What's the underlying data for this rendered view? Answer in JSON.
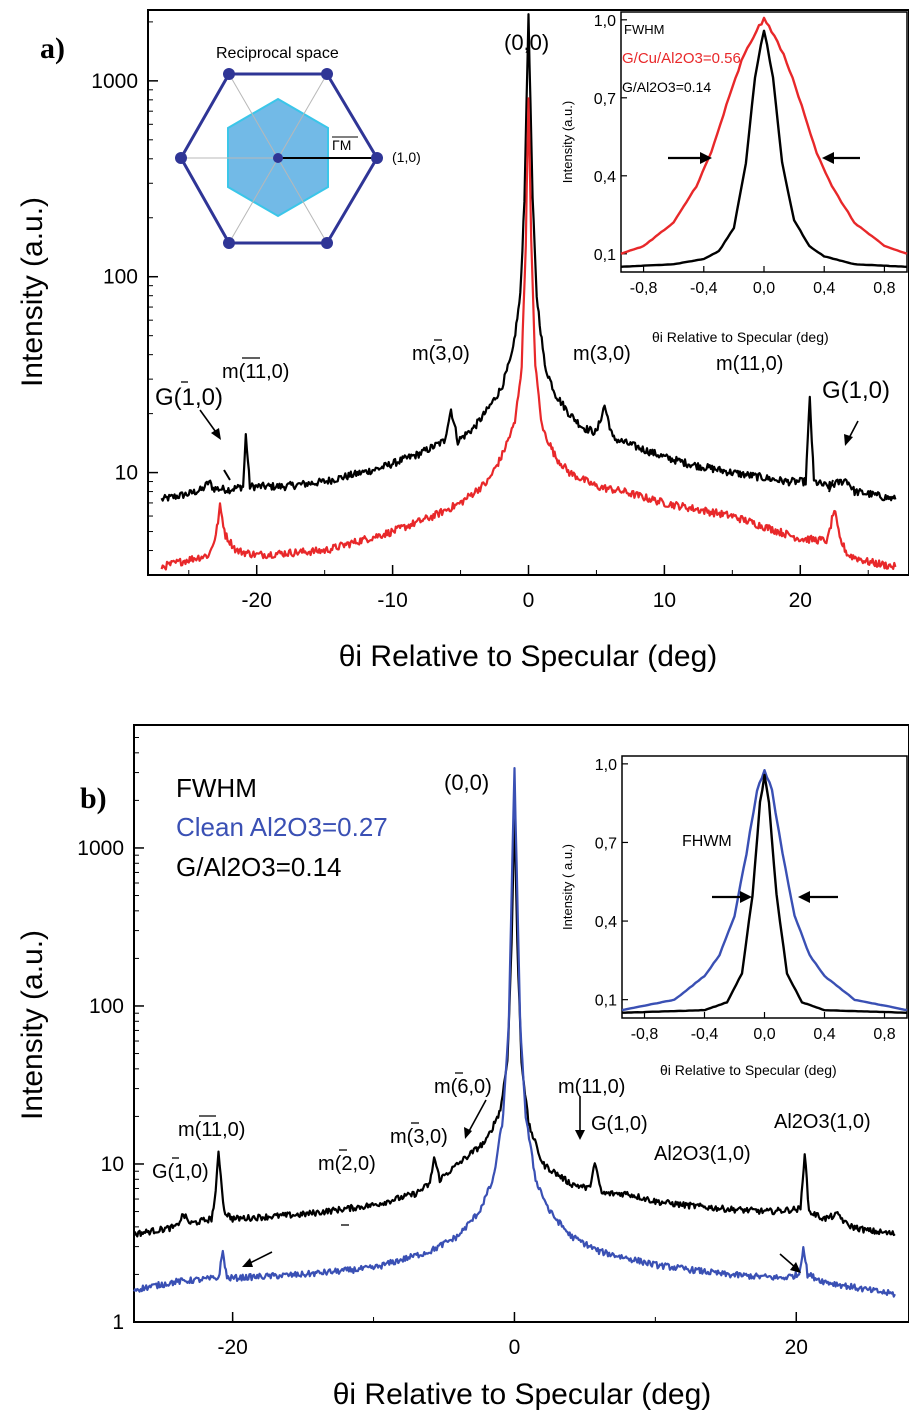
{
  "chart_data": [
    {
      "panel_label": "a)",
      "type": "line",
      "xlabel": "θi Relative to Specular (deg)",
      "ylabel": "Intensity (a.u.)",
      "xlim": [
        -28,
        28
      ],
      "ylim": [
        3,
        2300
      ],
      "yscale": "log",
      "xticks": [
        "-20",
        "-10",
        "0",
        "10",
        "20"
      ],
      "yticks": [
        "10",
        "100",
        "1000"
      ],
      "series": [
        {
          "color": "#000000",
          "x": [
            -27,
            -25,
            -24,
            -23.5,
            -23.2,
            -22,
            -21,
            -20.8,
            -20.5,
            -18,
            -15,
            -11,
            -8,
            -6.2,
            -5.7,
            -5.2,
            -4,
            -3,
            -2,
            -1.2,
            -0.6,
            -0.3,
            0,
            0.3,
            0.6,
            1.2,
            2,
            3,
            4,
            5,
            5.6,
            6.2,
            8,
            10,
            12,
            15,
            17,
            19,
            20.4,
            20.7,
            21,
            22,
            23.4,
            24,
            25,
            27
          ],
          "y": [
            7.3,
            7.8,
            8.2,
            9.0,
            8.3,
            8.2,
            8.5,
            15.5,
            8.5,
            8.5,
            9.0,
            10.5,
            12.5,
            14.5,
            21,
            14.5,
            17,
            21,
            27,
            40,
            80,
            250,
            2200,
            250,
            80,
            35,
            25,
            20,
            17,
            16,
            22,
            15,
            13.5,
            12,
            11,
            10,
            9.5,
            9.0,
            9.0,
            24,
            9.0,
            8.5,
            9.2,
            8.0,
            7.8,
            7.3
          ]
        },
        {
          "color": "#e8282a",
          "x": [
            -27,
            -25,
            -23.5,
            -23,
            -22.7,
            -22.3,
            -21.5,
            -20,
            -15,
            -10,
            -7,
            -5,
            -3,
            -2,
            -1,
            -0.5,
            -0.2,
            0,
            0.2,
            0.5,
            1,
            2,
            3,
            5,
            7,
            10,
            15,
            20,
            22,
            22.5,
            22.9,
            23.5,
            25,
            27
          ],
          "y": [
            3.3,
            3.6,
            3.8,
            4.8,
            6.7,
            4.8,
            4.0,
            3.8,
            4.0,
            5.0,
            6.0,
            7.0,
            9.0,
            12,
            18,
            35,
            150,
            850,
            150,
            35,
            17,
            12,
            10,
            8.5,
            8.0,
            7.0,
            6.0,
            4.6,
            4.5,
            6.5,
            4.6,
            3.8,
            3.5,
            3.3
          ]
        }
      ],
      "annotations": [
        "(0,0)",
        "m(11,0)",
        "m(3,0)",
        "m(3,0)",
        "m(11,0)",
        "G(1,0)",
        "G(1,0)"
      ],
      "inset": {
        "xlabel": "θi Relative to Specular (deg)",
        "ylabel": "Intensity (a.u.)",
        "xlim": [
          -0.95,
          0.95
        ],
        "ylim": [
          0.03,
          1.03
        ],
        "xticks": [
          "-0,8",
          "-0,4",
          "0,0",
          "0,4",
          "0,8"
        ],
        "yticks": [
          "0,1",
          "0,4",
          "0,7",
          "1,0"
        ],
        "legend": [
          {
            "text": "FWHM",
            "color": "#000000"
          },
          {
            "text": "G/Cu/Al2O3=0.56",
            "color": "#e8282a"
          },
          {
            "text": "G/Al2O3=0.14",
            "color": "#000000"
          }
        ],
        "series": [
          {
            "color": "#e8282a",
            "x": [
              -0.95,
              -0.8,
              -0.6,
              -0.45,
              -0.35,
              -0.25,
              -0.15,
              -0.05,
              0,
              0.05,
              0.15,
              0.25,
              0.35,
              0.45,
              0.6,
              0.8,
              0.95
            ],
            "y": [
              0.1,
              0.13,
              0.22,
              0.36,
              0.49,
              0.67,
              0.84,
              0.96,
              1.0,
              0.96,
              0.84,
              0.67,
              0.49,
              0.36,
              0.22,
              0.13,
              0.1
            ]
          },
          {
            "color": "#000000",
            "x": [
              -0.95,
              -0.6,
              -0.4,
              -0.3,
              -0.2,
              -0.12,
              -0.06,
              0,
              0.06,
              0.12,
              0.2,
              0.3,
              0.4,
              0.6,
              0.95
            ],
            "y": [
              0.05,
              0.06,
              0.08,
              0.11,
              0.2,
              0.45,
              0.78,
              0.96,
              0.78,
              0.45,
              0.23,
              0.13,
              0.09,
              0.06,
              0.05
            ]
          }
        ]
      },
      "schematic": {
        "title": "Reciprocal space",
        "point_label": "(1,0)",
        "segment_label": "ΓM"
      }
    },
    {
      "panel_label": "b)",
      "type": "line",
      "xlabel": "θi Relative to Specular (deg)",
      "ylabel": "Intensity (a.u.)",
      "xlim": [
        -27,
        28
      ],
      "ylim": [
        1,
        6000
      ],
      "yscale": "log",
      "xticks": [
        "-20",
        "0",
        "20"
      ],
      "yticks": [
        "1",
        "10",
        "100",
        "1000"
      ],
      "legend": [
        {
          "text": "FWHM",
          "color": "#000000"
        },
        {
          "text": "Clean Al2O3=0.27",
          "color": "#3a50b4"
        },
        {
          "text": "G/Al2O3=0.14",
          "color": "#000000"
        }
      ],
      "series": [
        {
          "color": "#000000",
          "x": [
            -27,
            -24,
            -23.5,
            -23,
            -21.5,
            -21.2,
            -21,
            -20.6,
            -20,
            -15,
            -10,
            -7,
            -6,
            -5.7,
            -5.3,
            -4,
            -2,
            -1,
            -0.5,
            -0.2,
            0,
            0.2,
            0.5,
            1,
            2,
            4,
            5.3,
            5.7,
            6.2,
            8,
            10,
            12,
            15,
            18,
            20.3,
            20.6,
            20.9,
            22,
            23,
            23.5,
            24,
            25,
            27
          ],
          "y": [
            3.6,
            4.0,
            4.8,
            4.2,
            4.5,
            6.5,
            12,
            5.0,
            4.5,
            4.8,
            5.5,
            6.5,
            7.5,
            11,
            8.0,
            10,
            14,
            22,
            45,
            250,
            1800,
            250,
            45,
            18,
            10,
            7.5,
            7.0,
            10,
            6.5,
            6.5,
            5.8,
            5.5,
            5.2,
            5.0,
            5.2,
            12,
            5.0,
            4.5,
            4.8,
            4.2,
            4.0,
            3.8,
            3.6
          ]
        },
        {
          "color": "#3a50b4",
          "x": [
            -27,
            -24,
            -21,
            -20.7,
            -20.4,
            -20,
            -15,
            -10,
            -6,
            -4,
            -2.5,
            -1.5,
            -0.8,
            -0.4,
            -0.15,
            0,
            0.15,
            0.4,
            0.8,
            1.5,
            2.5,
            4,
            6,
            10,
            15,
            19,
            20.2,
            20.5,
            20.8,
            22,
            25,
            27
          ],
          "y": [
            1.6,
            1.8,
            1.9,
            2.8,
            1.9,
            1.9,
            2.0,
            2.2,
            2.8,
            3.5,
            5.0,
            8.0,
            20,
            80,
            800,
            3200,
            800,
            80,
            20,
            8.0,
            5.0,
            3.5,
            2.8,
            2.3,
            2.0,
            1.9,
            2.0,
            3.0,
            2.0,
            1.8,
            1.6,
            1.5
          ]
        }
      ],
      "annotations": [
        "(0,0)",
        "m(11,0)",
        "G(1,0)",
        "m(2,0)",
        "m(3,0)",
        "m(6,0)",
        "m(11,0)",
        "G(1,0)",
        "Al2O3(1,0)",
        "Al2O3(1,0)"
      ],
      "inset": {
        "xlabel": "θi Relative to Specular (deg)",
        "ylabel": "Intensity ( a.u.)",
        "xlim": [
          -0.95,
          0.95
        ],
        "ylim": [
          0.03,
          1.03
        ],
        "xticks": [
          "-0,8",
          "-0,4",
          "0,0",
          "0,4",
          "0,8"
        ],
        "yticks": [
          "0,1",
          "0,4",
          "0,7",
          "1,0"
        ],
        "label": "FHWM",
        "series": [
          {
            "color": "#3a50b4",
            "x": [
              -0.95,
              -0.6,
              -0.4,
              -0.3,
              -0.2,
              -0.12,
              -0.05,
              0,
              0.05,
              0.12,
              0.2,
              0.3,
              0.4,
              0.6,
              0.95
            ],
            "y": [
              0.06,
              0.1,
              0.19,
              0.27,
              0.42,
              0.66,
              0.9,
              0.97,
              0.9,
              0.66,
              0.42,
              0.27,
              0.19,
              0.1,
              0.06
            ]
          },
          {
            "color": "#000000",
            "x": [
              -0.95,
              -0.4,
              -0.25,
              -0.15,
              -0.08,
              -0.03,
              0,
              0.03,
              0.08,
              0.15,
              0.25,
              0.4,
              0.95
            ],
            "y": [
              0.05,
              0.06,
              0.09,
              0.2,
              0.5,
              0.85,
              0.96,
              0.85,
              0.5,
              0.2,
              0.09,
              0.06,
              0.05
            ]
          }
        ]
      }
    }
  ]
}
